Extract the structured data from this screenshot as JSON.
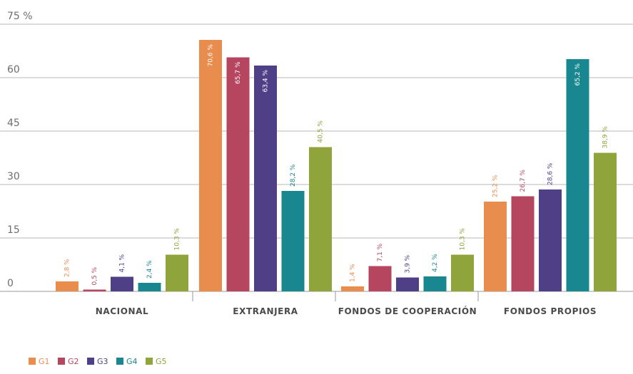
{
  "chart_data": {
    "type": "bar",
    "categories": [
      "NACIONAL",
      "EXTRANJERA",
      "FONDOS DE COOPERACIÓN",
      "FONDOS PROPIOS"
    ],
    "series": [
      {
        "name": "G1",
        "color": "#e98d4e",
        "values": [
          2.8,
          70.6,
          1.4,
          25.2
        ],
        "labels": [
          "2,8 %",
          "70,6 %",
          "1,4 %",
          "25,2 %"
        ]
      },
      {
        "name": "G2",
        "color": "#b6455f",
        "values": [
          0.5,
          65.7,
          7.1,
          26.7
        ],
        "labels": [
          "0,5 %",
          "65,7 %",
          "7,1 %",
          "26,7 %"
        ]
      },
      {
        "name": "G3",
        "color": "#4e3f86",
        "values": [
          4.1,
          63.4,
          3.9,
          28.6
        ],
        "labels": [
          "4,1 %",
          "63,4 %",
          "3,9 %",
          "28,6 %"
        ]
      },
      {
        "name": "G4",
        "color": "#19878f",
        "values": [
          2.4,
          28.2,
          4.2,
          65.2
        ],
        "labels": [
          "2,4 %",
          "28,2 %",
          "4,2 %",
          "65,2 %"
        ]
      },
      {
        "name": "G5",
        "color": "#8fa43a",
        "values": [
          10.3,
          40.5,
          10.3,
          38.9
        ],
        "labels": [
          "10,3 %",
          "40,5 %",
          "10,3 %",
          "38,9 %"
        ]
      }
    ],
    "yticks": [
      "0",
      "15",
      "30",
      "45",
      "60",
      "75 %"
    ],
    "ytick_values": [
      0,
      15,
      30,
      45,
      60,
      75
    ],
    "ylim": [
      0,
      75
    ],
    "grid": true,
    "legend_position": "bottom-left"
  }
}
